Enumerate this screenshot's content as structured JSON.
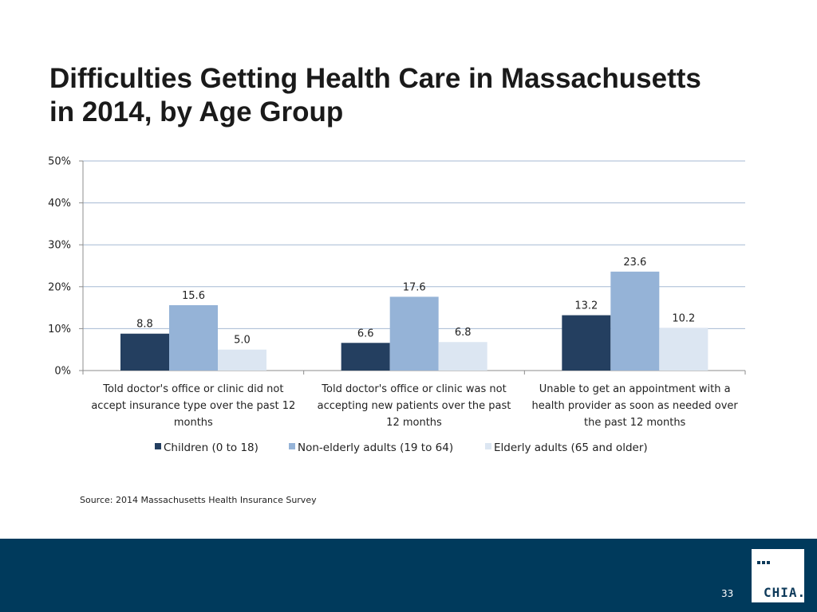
{
  "slide": {
    "title_line1": "Difficulties Getting Health Care in Massachusetts",
    "title_line2": "in 2014, by Age Group",
    "source": "Source:  2014 Massachusetts Health Insurance Survey",
    "page_number": "33",
    "logo_text": "CHIA.",
    "footer_color": "#003a5c"
  },
  "chart_data": {
    "type": "bar",
    "title": "",
    "xlabel": "",
    "ylabel": "",
    "ylim": [
      0,
      50
    ],
    "yticks": [
      "0%",
      "10%",
      "20%",
      "30%",
      "40%",
      "50%"
    ],
    "grid": true,
    "legend_position": "bottom",
    "categories": [
      [
        "Told doctor's office or clinic did not",
        "accept insurance type over the past 12",
        "months"
      ],
      [
        "Told doctor's office or clinic was not",
        "accepting new patients over the past",
        "12 months"
      ],
      [
        "Unable to get an appointment with a",
        "health provider as soon as needed over",
        "the past 12 months"
      ]
    ],
    "series": [
      {
        "name": "Children (0 to 18)",
        "color": "#243f60",
        "values": [
          8.8,
          6.6,
          13.2
        ],
        "labels": [
          "8.8",
          "6.6",
          "13.2"
        ]
      },
      {
        "name": "Non-elderly adults (19 to 64)",
        "color": "#95b3d7",
        "values": [
          15.6,
          17.6,
          23.6
        ],
        "labels": [
          "15.6",
          "17.6",
          "23.6"
        ]
      },
      {
        "name": "Elderly adults (65 and older)",
        "color": "#dce6f2",
        "values": [
          5.0,
          6.8,
          10.2
        ],
        "labels": [
          "5.0",
          "6.8",
          "10.2"
        ]
      }
    ]
  }
}
